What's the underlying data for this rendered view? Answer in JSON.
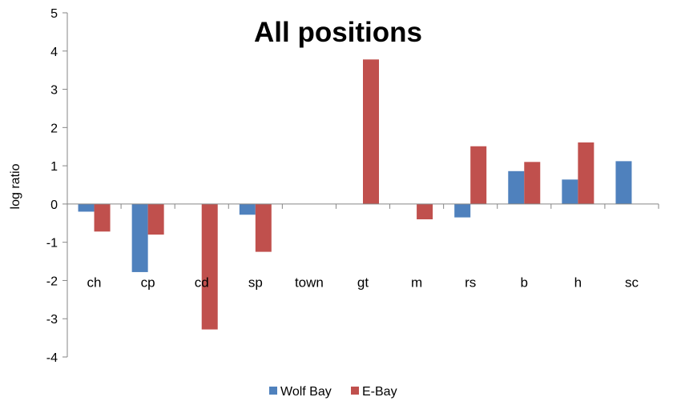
{
  "chart_data": {
    "type": "bar",
    "title": "All positions",
    "xlabel": "",
    "ylabel": "log ratio",
    "ylim": [
      -4,
      5
    ],
    "yticks": [
      -4,
      -3,
      -2,
      -1,
      0,
      1,
      2,
      3,
      4,
      5
    ],
    "categories": [
      "ch",
      "cp",
      "cd",
      "sp",
      "town",
      "gt",
      "m",
      "rs",
      "b",
      "h",
      "sc"
    ],
    "series": [
      {
        "name": "Wolf Bay",
        "color": "#4F81BD",
        "values": [
          -0.2,
          -1.78,
          0,
          -0.28,
          0,
          0,
          0,
          -0.35,
          0.86,
          0.64,
          1.12
        ]
      },
      {
        "name": "E-Bay",
        "color": "#C0504D",
        "values": [
          -0.72,
          -0.8,
          -3.28,
          -1.25,
          0,
          3.78,
          -0.4,
          1.51,
          1.1,
          1.61,
          0
        ]
      }
    ],
    "grid": false,
    "legend": "bottom"
  }
}
